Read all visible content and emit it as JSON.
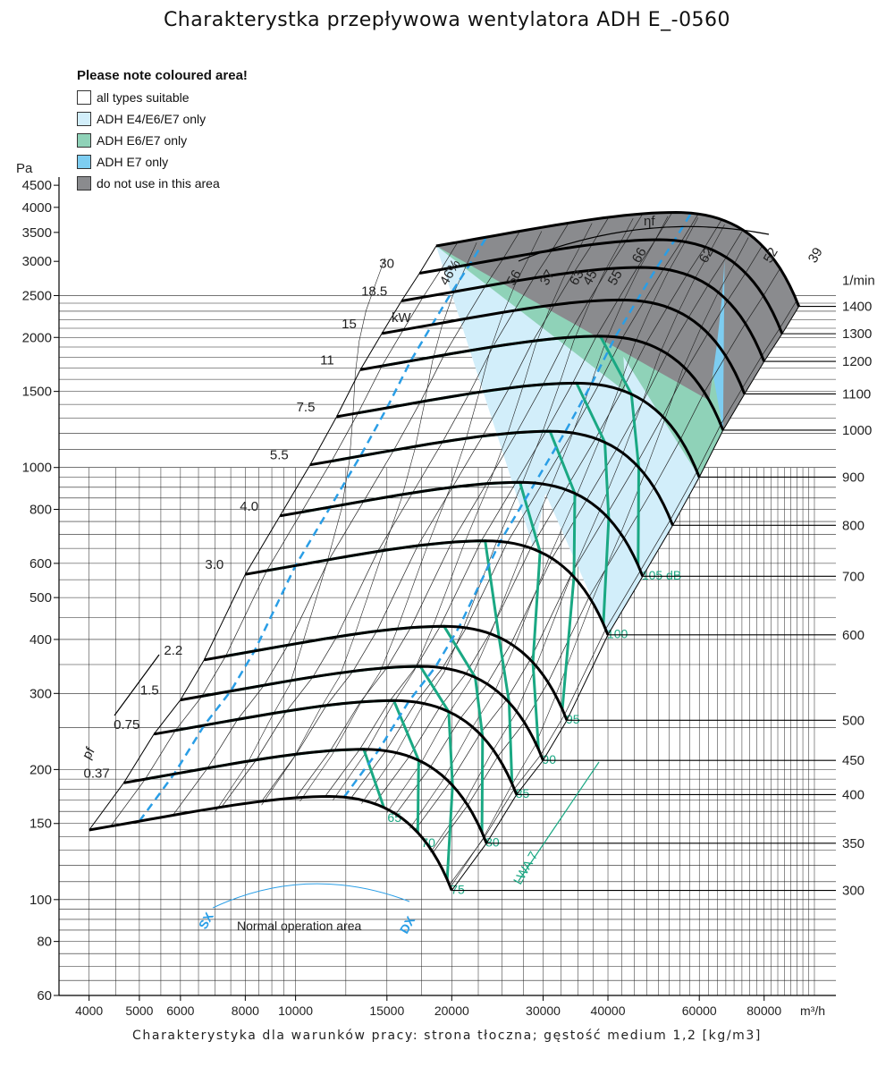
{
  "title": "Charakterystka przepływowa wentylatora ADH E_-0560",
  "footer": "Charakterystyka dla warunków pracy: strona tłoczna; gęstość medium 1,2 [kg/m3]",
  "legend": {
    "title": "Please note coloured area!",
    "items": [
      {
        "label": "all types suitable",
        "color": "#ffffff"
      },
      {
        "label": "ADH E4/E6/E7 only",
        "color": "#d2eefa"
      },
      {
        "label": "ADH E6/E7 only",
        "color": "#8fd2b8"
      },
      {
        "label": "ADH E7 only",
        "color": "#7dcdf1"
      },
      {
        "label": "do not use in this area",
        "color": "#8a8b8e"
      }
    ]
  },
  "chart_data": {
    "type": "line",
    "x_scale": "log",
    "y_scale": "log",
    "x_unit": "m³/h",
    "y_unit": "Pa",
    "xlim": [
      3500,
      110000
    ],
    "ylim": [
      60,
      4700
    ],
    "x_ticks": [
      4000,
      5000,
      6000,
      8000,
      10000,
      15000,
      20000,
      30000,
      40000,
      60000,
      80000
    ],
    "y_ticks": [
      60,
      80,
      100,
      150,
      200,
      300,
      400,
      500,
      600,
      800,
      1000,
      1500,
      2000,
      2500,
      3000,
      3500,
      4000,
      4500
    ],
    "speed_unit": "1/min",
    "speeds": [
      300,
      350,
      400,
      450,
      500,
      600,
      700,
      800,
      900,
      1000,
      1100,
      1200,
      1300,
      1400
    ],
    "speed_curves_pressure_at_max_flow": [
      105,
      135,
      175,
      210,
      260,
      410,
      560,
      735,
      950,
      1220,
      1480,
      1760,
      2040,
      2360
    ],
    "power_unit": "kW",
    "power_labels": [
      "0.37",
      "0.75",
      "1.5",
      "2.2",
      "3.0",
      "4.0",
      "5.5",
      "7.5",
      "11",
      "15",
      "18.5",
      "30"
    ],
    "efficiency_symbol": "ηf",
    "efficiency_labels": [
      "46%",
      "56",
      "63",
      "37",
      "55",
      "45",
      "66",
      "62",
      "52",
      "39"
    ],
    "sound_labels": [
      "65",
      "70",
      "75",
      "80",
      "85",
      "90",
      "95",
      "100",
      "105 dB"
    ],
    "sound_symbol": "LWA 7",
    "pressure_symbol": "pf",
    "operation_limits": [
      "SX",
      "DX"
    ],
    "operation_area_label": "Normal operation area",
    "zone_colors": {
      "e4e6e7": "#d2eefa",
      "e6e7": "#8fd2b8",
      "e7": "#7dcdf1",
      "forbidden": "#8a8b8e",
      "sound": "#1aa883",
      "limit": "#2a9ee6"
    }
  }
}
